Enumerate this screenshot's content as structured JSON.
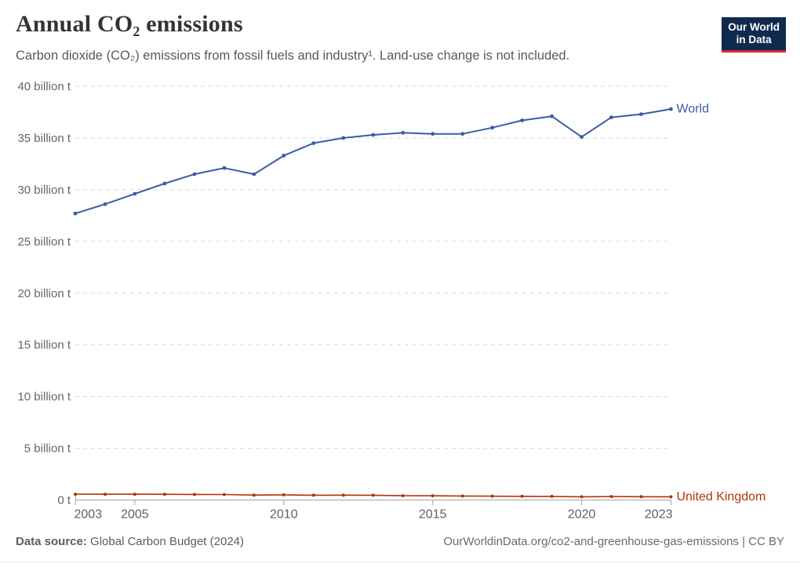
{
  "header": {
    "title": "Annual CO₂ emissions",
    "subtitle": "Carbon dioxide (CO₂) emissions from fossil fuels and industry¹. Land-use change is not included."
  },
  "logo": {
    "line1": "Our World",
    "line2": "in Data",
    "bg_color": "#102a4e",
    "accent_color": "#e0233c"
  },
  "chart_data": {
    "type": "line",
    "title": "Annual CO₂ emissions",
    "x": [
      2003,
      2004,
      2005,
      2006,
      2007,
      2008,
      2009,
      2010,
      2011,
      2012,
      2013,
      2014,
      2015,
      2016,
      2017,
      2018,
      2019,
      2020,
      2021,
      2022,
      2023
    ],
    "series": [
      {
        "name": "World",
        "color": "#3a5da5",
        "values": [
          27.7,
          28.6,
          29.6,
          30.6,
          31.5,
          32.1,
          31.5,
          33.3,
          34.5,
          35.0,
          35.3,
          35.5,
          35.4,
          35.4,
          36.0,
          36.7,
          37.1,
          35.1,
          37.0,
          37.3,
          37.8
        ]
      },
      {
        "name": "United Kingdom",
        "color": "#b13507",
        "values": [
          0.56,
          0.56,
          0.56,
          0.55,
          0.54,
          0.53,
          0.48,
          0.5,
          0.46,
          0.47,
          0.46,
          0.42,
          0.41,
          0.39,
          0.37,
          0.36,
          0.35,
          0.31,
          0.33,
          0.32,
          0.31
        ]
      }
    ],
    "ylim": [
      0,
      40
    ],
    "ytick_step": 5,
    "ytick_unit": "billion t",
    "ytick_zero_label": "0 t",
    "xticks": [
      2003,
      2005,
      2010,
      2015,
      2020,
      2023
    ],
    "grid": "horizontal dashed",
    "legend_position": "right-of-line-end"
  },
  "footer": {
    "source_label": "Data source:",
    "source_value": " Global Carbon Budget (2024)",
    "link": "OurWorldinData.org/co2-and-greenhouse-gas-emissions | CC BY"
  }
}
